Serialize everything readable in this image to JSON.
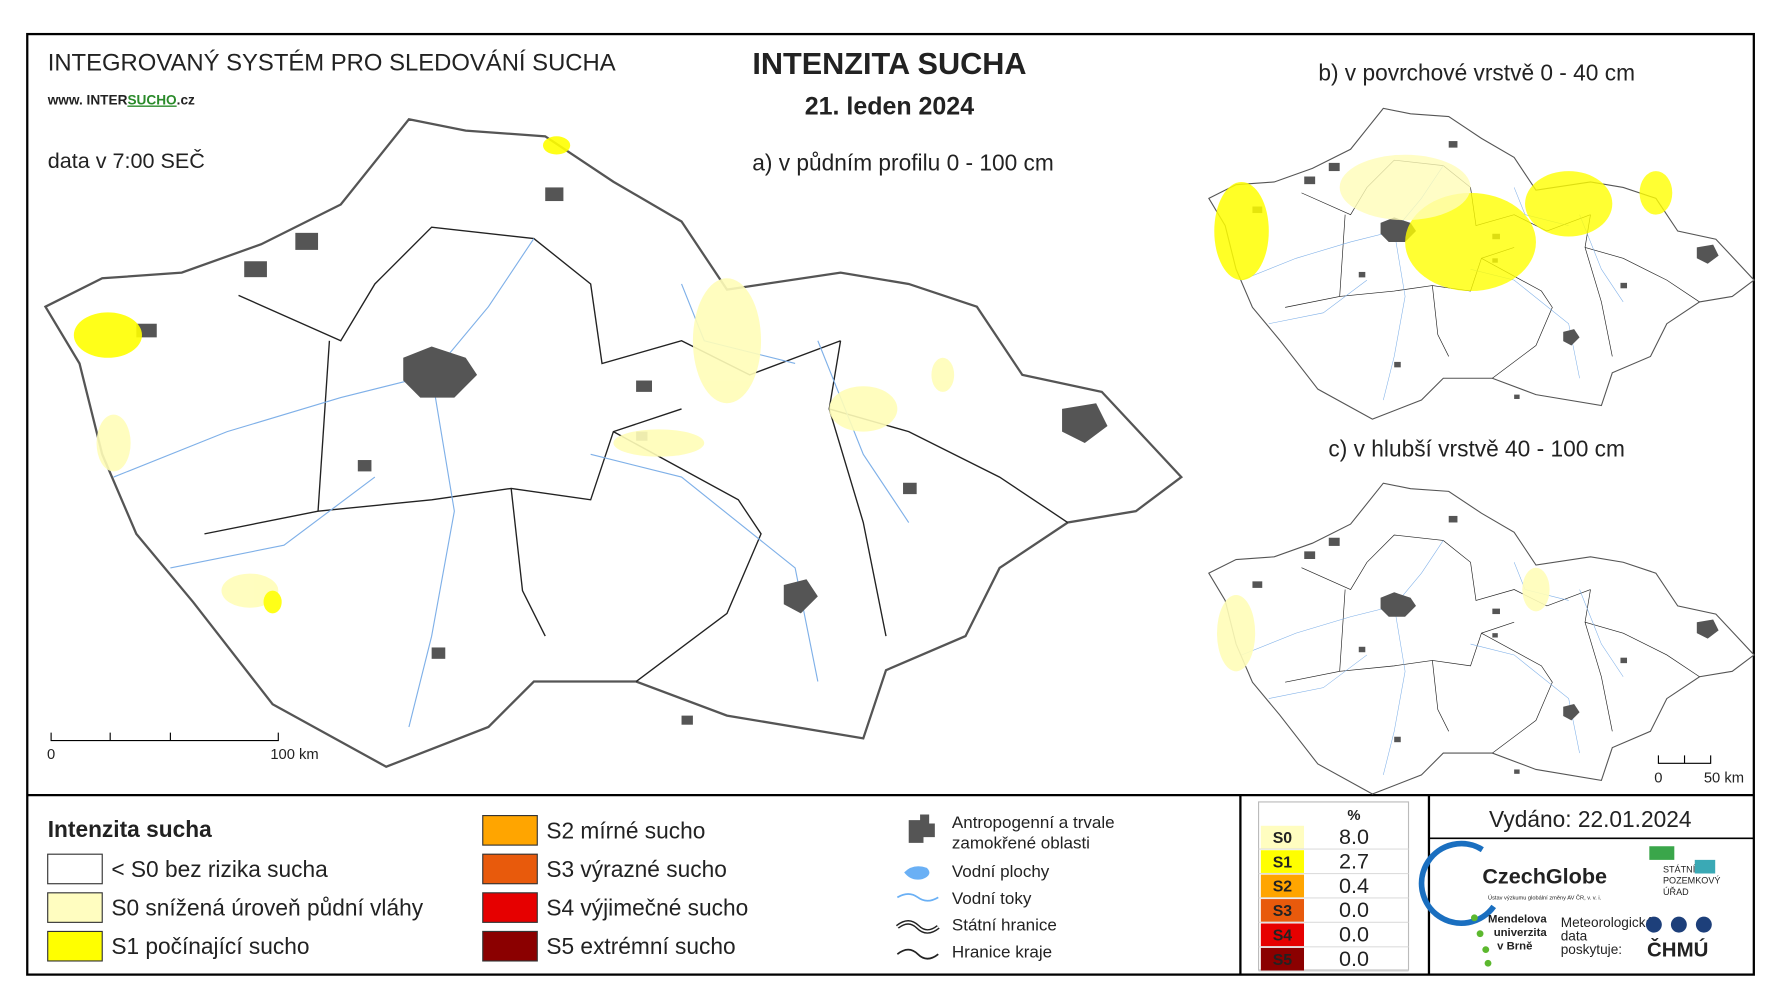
{
  "header": {
    "system": "INTEGROVANÝ SYSTÉM PRO SLEDOVÁNÍ SUCHA",
    "website": [
      "www. INTER",
      "SUCHO",
      ".cz"
    ],
    "data_time": "data v 7:00 SEČ",
    "title": "INTENZITA SUCHA",
    "date": "21. leden 2024"
  },
  "maps": [
    {
      "label": "a) v půdním profilu 0 - 100 cm",
      "scale": [
        "0",
        "100 km"
      ]
    },
    {
      "label": "b) v povrchové vrstvě 0 - 40 cm"
    },
    {
      "label": "c) v hlubší vrstvě 40 - 100 cm",
      "scale": [
        "0",
        "50 km"
      ]
    }
  ],
  "legend": {
    "title": "Intenzita sucha",
    "items": [
      {
        "label": "< S0 bez rizika sucha",
        "color": "#ffffff"
      },
      {
        "label": "S0 snížená úroveň půdní vláhy",
        "color": "#fffdc0"
      },
      {
        "label": "S1 počínající sucho",
        "color": "#ffff00"
      },
      {
        "label": "S2 mírné sucho",
        "color": "#ffa500"
      },
      {
        "label": "S3 výrazné sucho",
        "color": "#e85a0c"
      },
      {
        "label": "S4 výjimečné sucho",
        "color": "#e60000"
      },
      {
        "label": "S5 extrémní sucho",
        "color": "#8b0000"
      }
    ]
  },
  "symbols": [
    [
      "Antropogenní a trvale",
      "zamokřené oblasti"
    ],
    "Vodní plochy",
    "Vodní toky",
    "Státní hranice",
    "Hranice kraje"
  ],
  "stats": {
    "header": "%",
    "rows": [
      {
        "class": "S0",
        "value": "8.0",
        "color": "#fffdc0"
      },
      {
        "class": "S1",
        "value": "2.7",
        "color": "#ffff00"
      },
      {
        "class": "S2",
        "value": "0.4",
        "color": "#ffa500"
      },
      {
        "class": "S3",
        "value": "0.0",
        "color": "#e85a0c"
      },
      {
        "class": "S4",
        "value": "0.0",
        "color": "#e60000"
      },
      {
        "class": "S5",
        "value": "0.0",
        "color": "#8b0000"
      }
    ]
  },
  "issued": "Vydáno: 22.01.2024",
  "logos": {
    "czechglobe": "CzechGlobe",
    "czechglobe_sub": "Ústav výzkumu globální změny AV ČR, v. v. i.",
    "spu": [
      "STÁTNÍ",
      "POZEMKOVÝ",
      "ÚŘAD"
    ],
    "mendelu": [
      "Mendelova",
      "univerzita",
      "v Brně"
    ],
    "meteo": [
      "Meteorologická",
      "data",
      "poskytuje:"
    ],
    "chmu": "ČHMÚ"
  }
}
